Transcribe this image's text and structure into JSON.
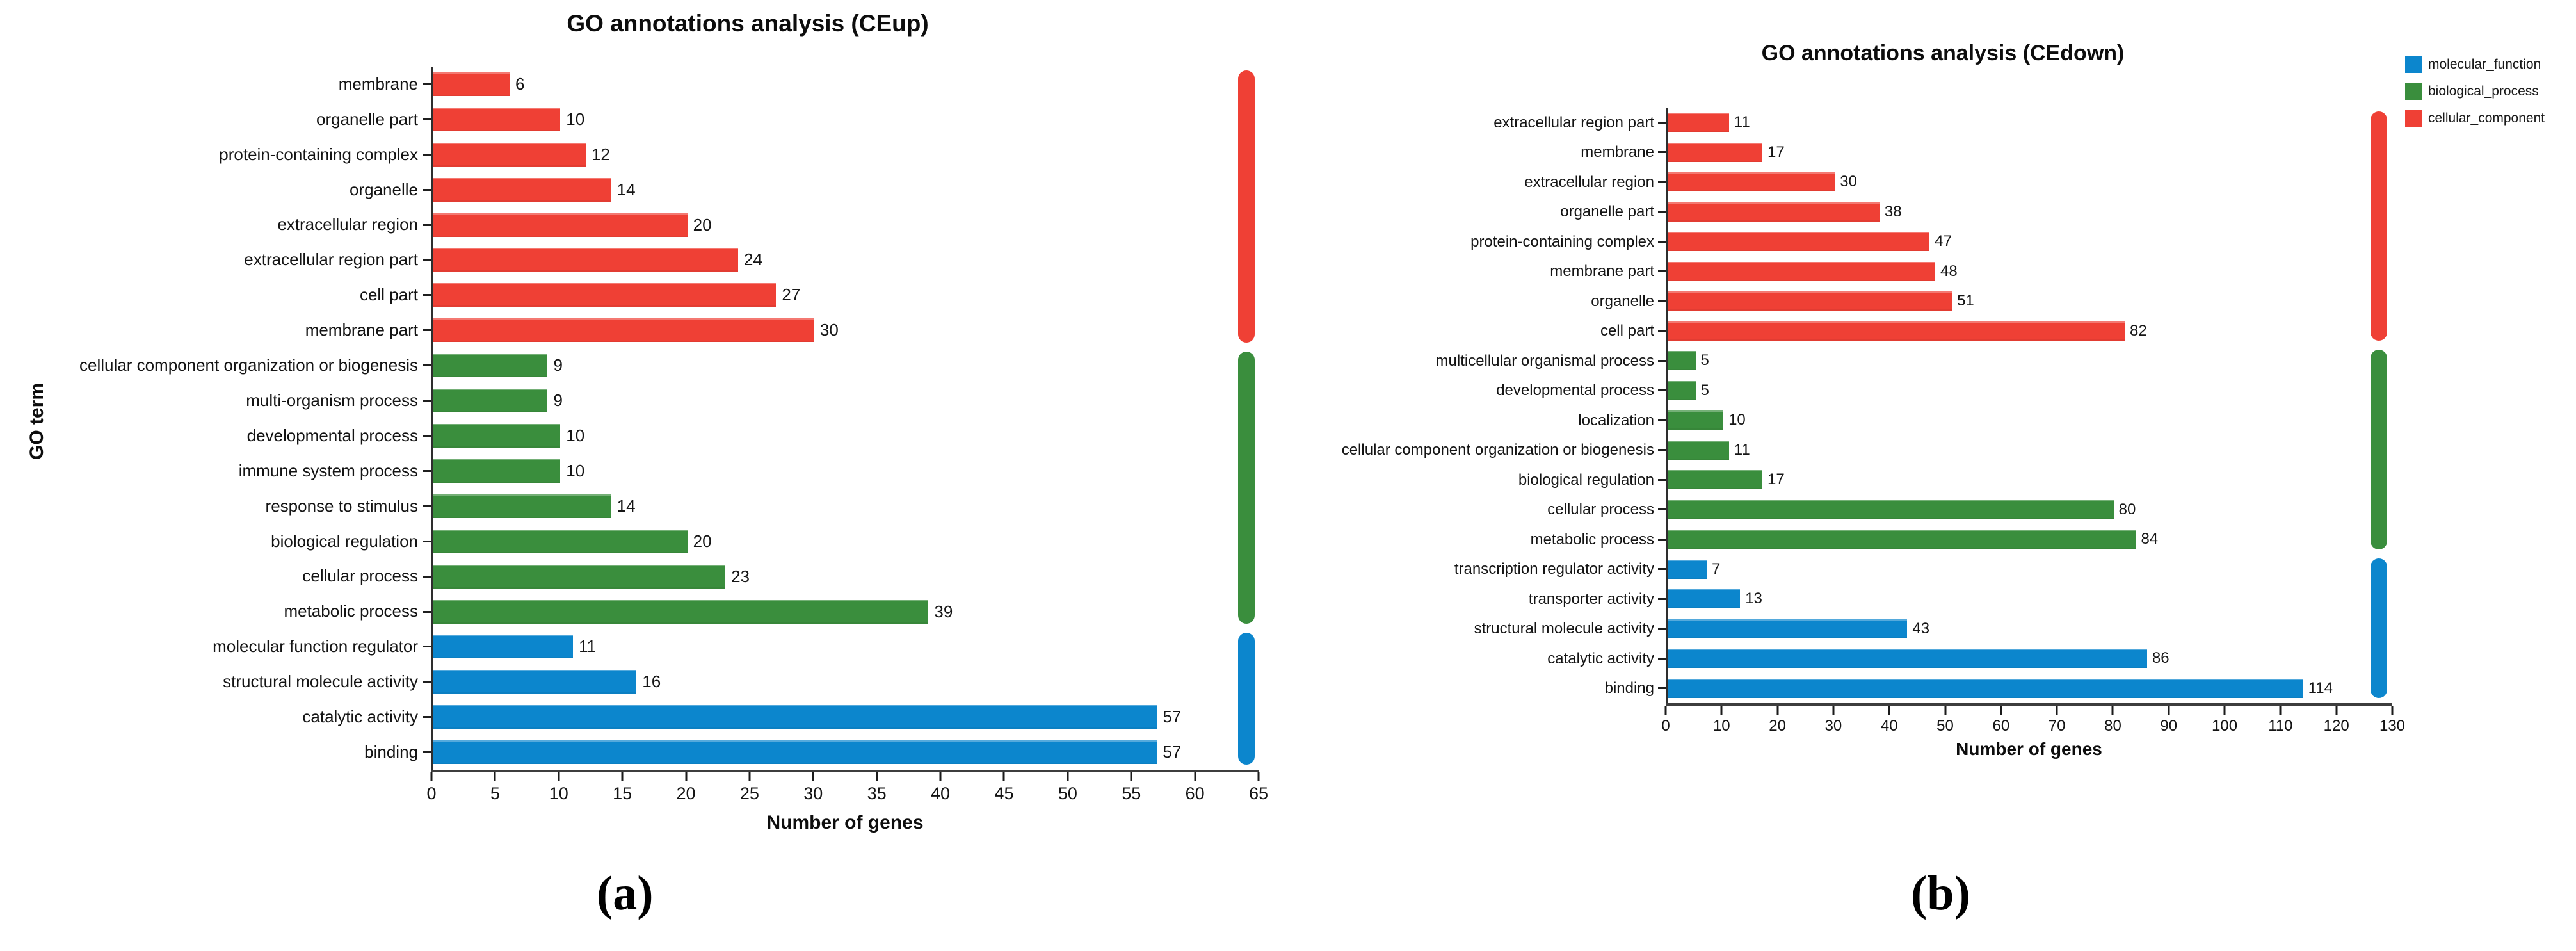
{
  "figure": {
    "background": "#ffffff",
    "panel_captions": {
      "a": "(a)",
      "b": "(b)"
    }
  },
  "legend": {
    "position": "top-right-of-panel-b",
    "items": [
      {
        "label": "molecular_function",
        "color": "#0c86cd"
      },
      {
        "label": "biological_process",
        "color": "#3a8e3d"
      },
      {
        "label": "cellular_component",
        "color": "#ef4035"
      }
    ]
  },
  "chart_data": [
    {
      "type": "bar",
      "orientation": "horizontal",
      "title": "GO annotations analysis (CEup)",
      "xlabel": "Number of genes",
      "ylabel": "GO term",
      "xlim": [
        0,
        65
      ],
      "xticks": [
        0,
        5,
        10,
        15,
        20,
        25,
        30,
        35,
        40,
        45,
        50,
        55,
        60,
        65
      ],
      "grid": false,
      "value_labels": true,
      "categories": [
        "membrane",
        "organelle part",
        "protein-containing complex",
        "organelle",
        "extracellular region",
        "extracellular region part",
        "cell part",
        "membrane part",
        "cellular component organization or biogenesis",
        "multi-organism process",
        "developmental process",
        "immune system process",
        "response to stimulus",
        "biological regulation",
        "cellular process",
        "metabolic process",
        "molecular function regulator",
        "structural molecule activity",
        "catalytic activity",
        "binding"
      ],
      "values": [
        6,
        10,
        12,
        14,
        20,
        24,
        27,
        30,
        9,
        9,
        10,
        10,
        14,
        20,
        23,
        39,
        11,
        16,
        57,
        57
      ],
      "groups": [
        "cellular_component",
        "cellular_component",
        "cellular_component",
        "cellular_component",
        "cellular_component",
        "cellular_component",
        "cellular_component",
        "cellular_component",
        "biological_process",
        "biological_process",
        "biological_process",
        "biological_process",
        "biological_process",
        "biological_process",
        "biological_process",
        "biological_process",
        "molecular_function",
        "molecular_function",
        "molecular_function",
        "molecular_function"
      ]
    },
    {
      "type": "bar",
      "orientation": "horizontal",
      "title": "GO annotations analysis (CEdown)",
      "xlabel": "Number of genes",
      "ylabel": "",
      "xlim": [
        0,
        130
      ],
      "xticks": [
        0,
        10,
        20,
        30,
        40,
        50,
        60,
        70,
        80,
        90,
        100,
        110,
        120,
        130
      ],
      "grid": false,
      "value_labels": true,
      "categories": [
        "extracellular region part",
        "membrane",
        "extracellular region",
        "organelle part",
        "protein-containing complex",
        "membrane part",
        "organelle",
        "cell part",
        "multicellular organismal process",
        "developmental process",
        "localization",
        "cellular component organization or biogenesis",
        "biological regulation",
        "cellular process",
        "metabolic process",
        "transcription regulator activity",
        "transporter activity",
        "structural molecule activity",
        "catalytic activity",
        "binding"
      ],
      "values": [
        11,
        17,
        30,
        38,
        47,
        48,
        51,
        82,
        5,
        5,
        10,
        11,
        17,
        80,
        84,
        7,
        13,
        43,
        86,
        114
      ],
      "groups": [
        "cellular_component",
        "cellular_component",
        "cellular_component",
        "cellular_component",
        "cellular_component",
        "cellular_component",
        "cellular_component",
        "cellular_component",
        "biological_process",
        "biological_process",
        "biological_process",
        "biological_process",
        "biological_process",
        "biological_process",
        "biological_process",
        "molecular_function",
        "molecular_function",
        "molecular_function",
        "molecular_function",
        "molecular_function"
      ]
    }
  ]
}
